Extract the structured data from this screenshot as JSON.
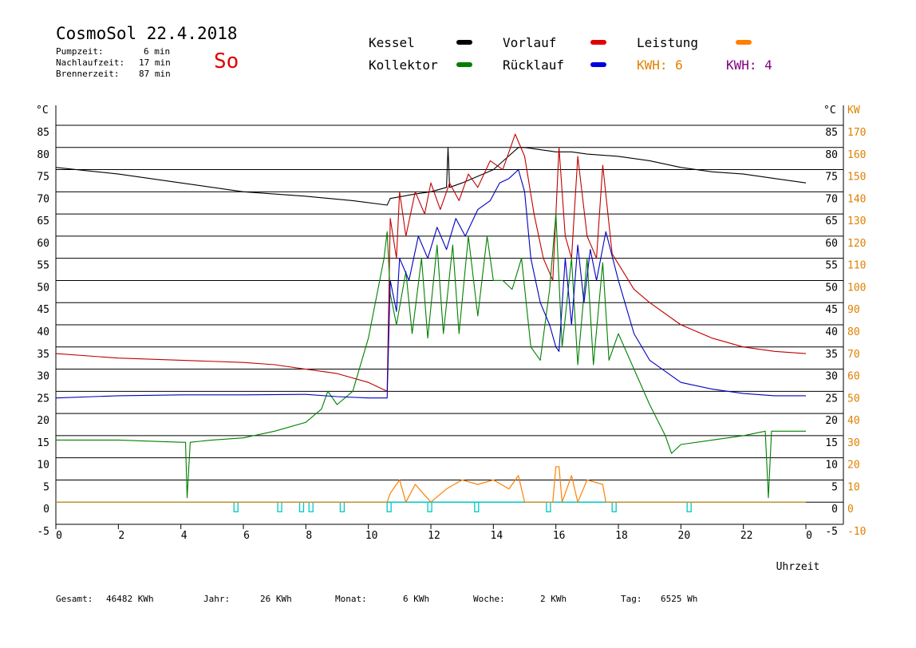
{
  "header": {
    "title": "CosmoSol 22.4.2018",
    "day": "So",
    "stats": [
      {
        "label": "Pumpzeit:",
        "value": "6 min"
      },
      {
        "label": "Nachlaufzeit:",
        "value": "17 min"
      },
      {
        "label": "Brennerzeit:",
        "value": "87 min"
      }
    ]
  },
  "legend": {
    "kessel": {
      "label": "Kessel",
      "color": "#000000"
    },
    "vorlauf": {
      "label": "Vorlauf",
      "color": "#e00000"
    },
    "leistung": {
      "label": "Leistung",
      "color": "#ff8000"
    },
    "kollektor": {
      "label": "Kollektor",
      "color": "#008000"
    },
    "ruecklauf": {
      "label": "Rücklauf",
      "color": "#0000e0"
    },
    "kwh_a": {
      "label": "KWH: 6",
      "color": "#e08000"
    },
    "kwh_b": {
      "label": "KWH: 4",
      "color": "#800080"
    }
  },
  "footer": {
    "gesamt_label": "Gesamt:",
    "gesamt_value": "46482 KWh",
    "jahr_label": "Jahr:",
    "jahr_value": "26 KWh",
    "monat_label": "Monat:",
    "monat_value": "6 KWh",
    "woche_label": "Woche:",
    "woche_value": "2 KWh",
    "tag_label": "Tag:",
    "tag_value": "6525 Wh"
  },
  "chart_data": {
    "type": "line",
    "xlabel": "Uhrzeit",
    "ylabel_left": "°C",
    "ylabel_right": "KW",
    "xlim": [
      0,
      24
    ],
    "ylim_left": [
      -5,
      85
    ],
    "ylim_right": [
      -10,
      170
    ],
    "xticks": [
      "0",
      "2",
      "4",
      "6",
      "8",
      "10",
      "12",
      "14",
      "16",
      "18",
      "20",
      "22",
      "0"
    ],
    "yticks_left": [
      "-5",
      "0",
      "5",
      "10",
      "15",
      "20",
      "25",
      "30",
      "35",
      "40",
      "45",
      "50",
      "55",
      "60",
      "65",
      "70",
      "75",
      "80",
      "85"
    ],
    "yticks_right": [
      "-10",
      "0",
      "10",
      "20",
      "30",
      "40",
      "50",
      "60",
      "70",
      "80",
      "90",
      "100",
      "110",
      "120",
      "130",
      "140",
      "150",
      "160",
      "170"
    ],
    "grid": "horizontal",
    "series": [
      {
        "name": "Kessel",
        "color": "#000000",
        "points": [
          [
            0,
            75.5
          ],
          [
            2,
            74
          ],
          [
            4,
            72
          ],
          [
            6,
            70
          ],
          [
            8,
            69
          ],
          [
            9.5,
            68
          ],
          [
            10.6,
            67
          ],
          [
            10.7,
            68.5
          ],
          [
            11.5,
            69.5
          ],
          [
            12,
            70
          ],
          [
            12.5,
            71
          ],
          [
            12.55,
            80
          ],
          [
            12.6,
            71
          ],
          [
            13,
            72
          ],
          [
            14,
            75
          ],
          [
            14.8,
            80
          ],
          [
            15,
            80
          ],
          [
            15.5,
            79.5
          ],
          [
            16,
            79
          ],
          [
            16.5,
            79
          ],
          [
            17,
            78.5
          ],
          [
            18,
            78
          ],
          [
            19,
            77
          ],
          [
            20,
            75.5
          ],
          [
            21,
            74.5
          ],
          [
            22,
            74
          ],
          [
            23,
            73
          ],
          [
            24,
            72
          ]
        ]
      },
      {
        "name": "Vorlauf",
        "color": "#c00000",
        "points": [
          [
            0,
            33.5
          ],
          [
            2,
            32.5
          ],
          [
            4,
            32
          ],
          [
            6,
            31.5
          ],
          [
            7,
            31
          ],
          [
            8,
            30
          ],
          [
            9,
            29
          ],
          [
            10,
            27
          ],
          [
            10.6,
            25
          ],
          [
            10.7,
            64
          ],
          [
            10.9,
            55
          ],
          [
            11,
            70
          ],
          [
            11.2,
            60
          ],
          [
            11.5,
            70
          ],
          [
            11.8,
            65
          ],
          [
            12,
            72
          ],
          [
            12.3,
            66
          ],
          [
            12.6,
            72
          ],
          [
            12.9,
            68
          ],
          [
            13.2,
            74
          ],
          [
            13.5,
            71
          ],
          [
            13.9,
            77
          ],
          [
            14.3,
            75
          ],
          [
            14.7,
            83
          ],
          [
            15,
            78
          ],
          [
            15.3,
            65
          ],
          [
            15.6,
            55
          ],
          [
            15.9,
            50
          ],
          [
            16.1,
            80
          ],
          [
            16.3,
            60
          ],
          [
            16.5,
            55
          ],
          [
            16.7,
            78
          ],
          [
            17,
            60
          ],
          [
            17.3,
            55
          ],
          [
            17.5,
            76
          ],
          [
            17.8,
            56
          ],
          [
            18.5,
            48
          ],
          [
            19,
            45
          ],
          [
            20,
            40
          ],
          [
            21,
            37
          ],
          [
            22,
            35
          ],
          [
            23,
            34
          ],
          [
            24,
            33.5
          ]
        ]
      },
      {
        "name": "Kollektor",
        "color": "#008000",
        "points": [
          [
            0,
            14
          ],
          [
            2,
            14
          ],
          [
            4,
            13.5
          ],
          [
            4.15,
            13.5
          ],
          [
            4.2,
            1
          ],
          [
            4.3,
            13.5
          ],
          [
            5,
            14
          ],
          [
            6,
            14.5
          ],
          [
            7,
            16
          ],
          [
            8,
            18
          ],
          [
            8.5,
            21
          ],
          [
            8.7,
            25
          ],
          [
            9,
            22
          ],
          [
            9.5,
            25
          ],
          [
            10,
            37
          ],
          [
            10.5,
            55
          ],
          [
            10.6,
            61
          ],
          [
            10.7,
            47
          ],
          [
            10.9,
            40
          ],
          [
            11.2,
            52
          ],
          [
            11.4,
            38
          ],
          [
            11.7,
            55
          ],
          [
            11.9,
            37
          ],
          [
            12.2,
            58
          ],
          [
            12.4,
            38
          ],
          [
            12.7,
            58
          ],
          [
            12.9,
            38
          ],
          [
            13.2,
            60
          ],
          [
            13.5,
            42
          ],
          [
            13.8,
            60
          ],
          [
            14,
            50
          ],
          [
            14.3,
            50
          ],
          [
            14.6,
            48
          ],
          [
            14.9,
            55
          ],
          [
            15.2,
            35
          ],
          [
            15.5,
            32
          ],
          [
            15.8,
            48
          ],
          [
            16,
            65
          ],
          [
            16.2,
            35
          ],
          [
            16.5,
            55
          ],
          [
            16.7,
            31
          ],
          [
            17,
            55
          ],
          [
            17.2,
            31
          ],
          [
            17.5,
            54
          ],
          [
            17.7,
            32
          ],
          [
            18,
            38
          ],
          [
            18.5,
            30
          ],
          [
            19,
            22
          ],
          [
            19.5,
            15
          ],
          [
            19.7,
            11
          ],
          [
            20,
            13
          ],
          [
            21,
            14
          ],
          [
            22,
            15
          ],
          [
            22.7,
            16
          ],
          [
            22.8,
            1
          ],
          [
            22.9,
            16
          ],
          [
            24,
            16
          ]
        ]
      },
      {
        "name": "Rücklauf",
        "color": "#0000c0",
        "points": [
          [
            0,
            23.5
          ],
          [
            2,
            24
          ],
          [
            4,
            24.2
          ],
          [
            6,
            24.2
          ],
          [
            8,
            24.3
          ],
          [
            9,
            23.8
          ],
          [
            10,
            23.5
          ],
          [
            10.6,
            23.5
          ],
          [
            10.7,
            50
          ],
          [
            10.9,
            43
          ],
          [
            11,
            55
          ],
          [
            11.3,
            50
          ],
          [
            11.6,
            60
          ],
          [
            11.9,
            55
          ],
          [
            12.2,
            62
          ],
          [
            12.5,
            57
          ],
          [
            12.8,
            64
          ],
          [
            13.1,
            60
          ],
          [
            13.5,
            66
          ],
          [
            13.9,
            68
          ],
          [
            14.2,
            72
          ],
          [
            14.5,
            73
          ],
          [
            14.8,
            75
          ],
          [
            15,
            70
          ],
          [
            15.2,
            55
          ],
          [
            15.5,
            45
          ],
          [
            15.8,
            40
          ],
          [
            16,
            35
          ],
          [
            16.1,
            34
          ],
          [
            16.3,
            55
          ],
          [
            16.5,
            40
          ],
          [
            16.7,
            58
          ],
          [
            16.9,
            45
          ],
          [
            17.1,
            57
          ],
          [
            17.3,
            50
          ],
          [
            17.6,
            61
          ],
          [
            18,
            50
          ],
          [
            18.5,
            38
          ],
          [
            19,
            32
          ],
          [
            20,
            27
          ],
          [
            21,
            25.5
          ],
          [
            22,
            24.5
          ],
          [
            23,
            24
          ],
          [
            24,
            24
          ]
        ]
      },
      {
        "name": "Leistung",
        "color": "#ff8000",
        "points": [
          [
            0,
            0
          ],
          [
            10.6,
            0
          ],
          [
            10.7,
            2
          ],
          [
            11,
            5
          ],
          [
            11.2,
            0
          ],
          [
            11.5,
            4
          ],
          [
            12,
            0
          ],
          [
            12.5,
            3
          ],
          [
            13,
            5
          ],
          [
            13.5,
            4
          ],
          [
            14,
            5
          ],
          [
            14.5,
            3
          ],
          [
            14.8,
            6
          ],
          [
            15,
            0
          ],
          [
            15.9,
            0
          ],
          [
            16,
            8
          ],
          [
            16.1,
            8
          ],
          [
            16.2,
            0
          ],
          [
            16.5,
            6
          ],
          [
            16.7,
            0
          ],
          [
            17,
            5
          ],
          [
            17.5,
            4
          ],
          [
            17.6,
            0
          ],
          [
            24,
            0
          ]
        ]
      },
      {
        "name": "Pumpe",
        "color": "#00c0c0",
        "points": [
          [
            0,
            0
          ],
          [
            24,
            0
          ]
        ]
      }
    ],
    "pump_pulses_hours": [
      5.7,
      7.1,
      7.8,
      8.1,
      9.1,
      10.6,
      11.9,
      13.4,
      15.7,
      17.8,
      20.2
    ]
  }
}
